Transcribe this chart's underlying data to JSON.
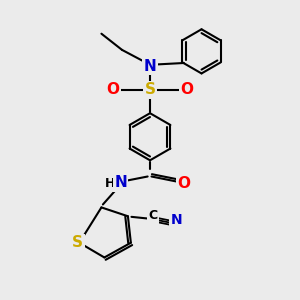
{
  "background_color": "#ebebeb",
  "atom_colors": {
    "C": "#000000",
    "N": "#0000cc",
    "O": "#ff0000",
    "S_sulfonyl": "#ccaa00",
    "S_thiophene": "#ccaa00",
    "H": "#000000"
  },
  "bond_color": "#000000",
  "font_size": 9,
  "figsize": [
    3.0,
    3.0
  ],
  "dpi": 100
}
